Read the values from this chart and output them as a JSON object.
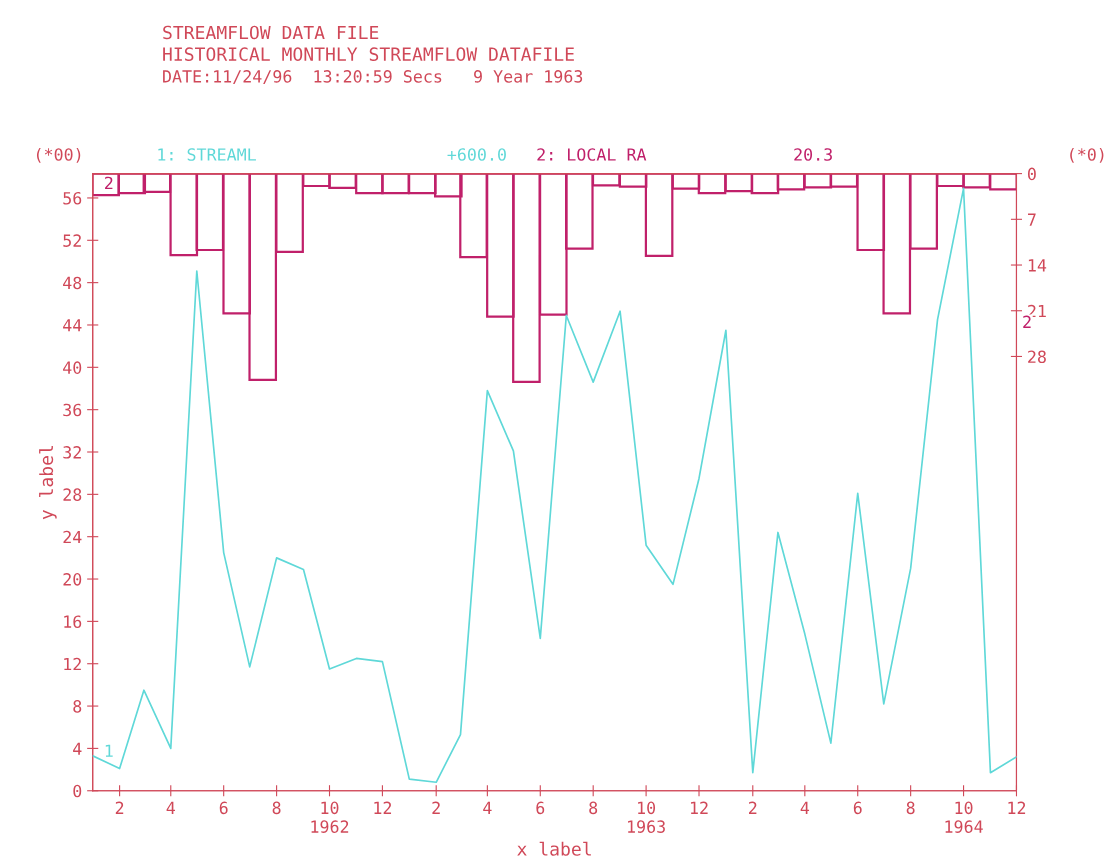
{
  "chart_data": {
    "type": "line",
    "title": "STREAMFLOW DATA FILE",
    "subtitle": "HISTORICAL MONTHLY STREAMFLOW DATAFILE",
    "xlabel": "x label",
    "ylabel": "y label",
    "annotations": [
      "DATE:11/24/96  13:20:59 Secs   9 Year 1963",
      "(*00)",
      "(*0)",
      "+600.0",
      "20.3",
      "1",
      "2",
      "2"
    ],
    "xlim": [
      "1962-01",
      "1964-12"
    ],
    "ylim": [
      0,
      58.3
    ],
    "y2lim": [
      94.5,
      0
    ],
    "xticks": [
      {
        "value": "1962-02",
        "label": "2"
      },
      {
        "value": "1962-04",
        "label": "4"
      },
      {
        "value": "1962-06",
        "label": "6"
      },
      {
        "value": "1962-08",
        "label": "8"
      },
      {
        "value": "1962-10",
        "label": "10\n1962"
      },
      {
        "value": "1962-12",
        "label": "12"
      },
      {
        "value": "1963-02",
        "label": "2"
      },
      {
        "value": "1963-04",
        "label": "4"
      },
      {
        "value": "1963-06",
        "label": "6"
      },
      {
        "value": "1963-08",
        "label": "8"
      },
      {
        "value": "1963-10",
        "label": "10\n1963"
      },
      {
        "value": "1963-12",
        "label": "12"
      },
      {
        "value": "1964-02",
        "label": "2"
      },
      {
        "value": "1964-04",
        "label": "4"
      },
      {
        "value": "1964-06",
        "label": "6"
      },
      {
        "value": "1964-08",
        "label": "8"
      },
      {
        "value": "1964-10",
        "label": "10\n1964"
      },
      {
        "value": "1964-12",
        "label": "12"
      }
    ],
    "yticks": [
      0,
      4,
      8,
      12,
      16,
      20,
      24,
      28,
      32,
      36,
      40,
      44,
      48,
      52,
      56
    ],
    "y2ticks": [
      0,
      7,
      14,
      21,
      28
    ],
    "grid": false,
    "legend": "top",
    "series": [
      {
        "name": "1: STREAML",
        "color": "#5fd8d8",
        "x": [
          "1962-01",
          "1962-02",
          "1962-03",
          "1962-04",
          "1962-05",
          "1962-06",
          "1962-07",
          "1962-08",
          "1962-09",
          "1962-10",
          "1962-11",
          "1962-12",
          "1963-01",
          "1963-02",
          "1963-03",
          "1963-04",
          "1963-05",
          "1963-06",
          "1963-07",
          "1963-08",
          "1963-09",
          "1963-10",
          "1963-11",
          "1963-12",
          "1964-01",
          "1964-02",
          "1964-03",
          "1964-04",
          "1964-05",
          "1964-06",
          "1964-07",
          "1964-08",
          "1964-09",
          "1964-10",
          "1964-11",
          "1964-12"
        ],
        "values": [
          3.3,
          2.1,
          9.5,
          4.0,
          49.1,
          22.5,
          11.7,
          22.0,
          20.9,
          11.5,
          12.5,
          12.2,
          1.1,
          0.8,
          5.3,
          37.8,
          32.1,
          14.4,
          44.9,
          38.6,
          45.3,
          23.2,
          19.5,
          29.5,
          43.5,
          1.7,
          24.4,
          14.8,
          4.5,
          28.1,
          8.2,
          21.0,
          44.5,
          56.9,
          1.7,
          3.2
        ]
      },
      {
        "name": "2: LOCAL RA",
        "type": "bar",
        "axis": "y2",
        "color": "#c0206a",
        "x": [
          "1962-01-16",
          "1962-02-15",
          "1962-03-16",
          "1962-04-16",
          "1962-05-16",
          "1962-06-16",
          "1962-07-16",
          "1962-08-16",
          "1962-09-16",
          "1962-10-16",
          "1962-11-16",
          "1962-12-16",
          "1963-01-16",
          "1963-02-15",
          "1963-03-16",
          "1963-04-16",
          "1963-05-16",
          "1963-06-16",
          "1963-07-16",
          "1963-08-16",
          "1963-09-16",
          "1963-10-16",
          "1963-11-16",
          "1963-12-16",
          "1964-01-16",
          "1964-02-15",
          "1964-03-16",
          "1964-04-16",
          "1964-05-16",
          "1964-06-16",
          "1964-07-16",
          "1964-08-16",
          "1964-09-16",
          "1964-10-16",
          "1964-11-16"
        ],
        "values": [
          3.3,
          3.0,
          2.8,
          12.5,
          11.7,
          21.4,
          31.6,
          12.0,
          1.9,
          2.2,
          3.0,
          3.0,
          3.0,
          3.5,
          12.8,
          21.9,
          31.9,
          21.6,
          11.5,
          1.8,
          2.0,
          12.6,
          2.3,
          3.0,
          2.7,
          3.0,
          2.4,
          2.1,
          2.0,
          11.7,
          21.4,
          11.5,
          1.9,
          2.1,
          2.4
        ]
      }
    ]
  }
}
